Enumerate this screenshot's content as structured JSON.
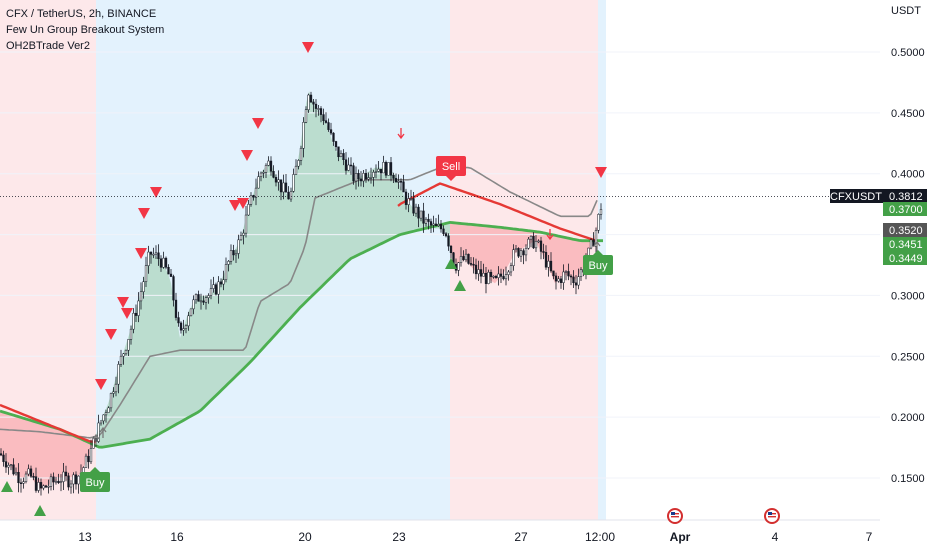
{
  "legend": {
    "symbol_line": "CFX / TetherUS, 2h, BINANCE",
    "indicator1": "Few Un Group Breakout System",
    "indicator2": "OH2BTrade Ver2"
  },
  "colors": {
    "bull": "#43a047",
    "bear": "#f23645",
    "bg_bull": "#e3f2fd",
    "bg_bear": "#fde8ea",
    "ma": "#4caf50",
    "ma_bear": "#e53935",
    "trail": "#888888",
    "candle": "#131722"
  },
  "chart_data": {
    "type": "candlestick",
    "y_unit": "USDT",
    "ylim": [
      0.105,
      0.542
    ],
    "y_ticks": [
      "0.5000",
      "0.4500",
      "0.4000",
      "0.3500",
      "0.3000",
      "0.2500",
      "0.2000",
      "0.1500"
    ],
    "x_ticks": [
      "13",
      "16",
      "20",
      "23",
      "27",
      "12:00",
      "Apr",
      "4",
      "7"
    ],
    "price_tags": [
      {
        "label": "CFXUSDT",
        "value": "0.3812",
        "kind": "symbol"
      },
      {
        "value": "0.3700",
        "kind": "green"
      },
      {
        "value": "0.3520",
        "kind": "grey"
      },
      {
        "value": "0.3451",
        "kind": "green"
      },
      {
        "value": "0.3449",
        "kind": "green"
      }
    ],
    "last_price": 0.3812,
    "signals": [
      {
        "label": "Sell",
        "type": "sell"
      },
      {
        "label": "Buy",
        "type": "buy"
      },
      {
        "label": "Buy",
        "type": "buy"
      }
    ],
    "close_path": [
      [
        0,
        0.17
      ],
      [
        10,
        0.16
      ],
      [
        20,
        0.15
      ],
      [
        30,
        0.152
      ],
      [
        40,
        0.14
      ],
      [
        50,
        0.145
      ],
      [
        60,
        0.15
      ],
      [
        70,
        0.148
      ],
      [
        80,
        0.153
      ],
      [
        90,
        0.17
      ],
      [
        100,
        0.195
      ],
      [
        110,
        0.215
      ],
      [
        120,
        0.245
      ],
      [
        130,
        0.27
      ],
      [
        140,
        0.3
      ],
      [
        150,
        0.335
      ],
      [
        160,
        0.33
      ],
      [
        170,
        0.315
      ],
      [
        180,
        0.265
      ],
      [
        190,
        0.29
      ],
      [
        200,
        0.3
      ],
      [
        210,
        0.3
      ],
      [
        220,
        0.31
      ],
      [
        230,
        0.33
      ],
      [
        240,
        0.345
      ],
      [
        250,
        0.375
      ],
      [
        260,
        0.4
      ],
      [
        270,
        0.41
      ],
      [
        280,
        0.39
      ],
      [
        290,
        0.38
      ],
      [
        300,
        0.42
      ],
      [
        308,
        0.47
      ],
      [
        315,
        0.455
      ],
      [
        325,
        0.445
      ],
      [
        335,
        0.42
      ],
      [
        345,
        0.41
      ],
      [
        355,
        0.395
      ],
      [
        365,
        0.4
      ],
      [
        375,
        0.405
      ],
      [
        385,
        0.405
      ],
      [
        395,
        0.4
      ],
      [
        405,
        0.38
      ],
      [
        415,
        0.37
      ],
      [
        425,
        0.36
      ],
      [
        435,
        0.355
      ],
      [
        445,
        0.355
      ],
      [
        455,
        0.325
      ],
      [
        465,
        0.33
      ],
      [
        475,
        0.32
      ],
      [
        485,
        0.315
      ],
      [
        495,
        0.31
      ],
      [
        505,
        0.32
      ],
      [
        515,
        0.335
      ],
      [
        525,
        0.34
      ],
      [
        535,
        0.345
      ],
      [
        545,
        0.33
      ],
      [
        555,
        0.31
      ],
      [
        565,
        0.318
      ],
      [
        575,
        0.312
      ],
      [
        585,
        0.325
      ],
      [
        595,
        0.35
      ],
      [
        603,
        0.381
      ]
    ]
  },
  "icons": [
    "us-flag-icon",
    "us-flag-icon"
  ]
}
